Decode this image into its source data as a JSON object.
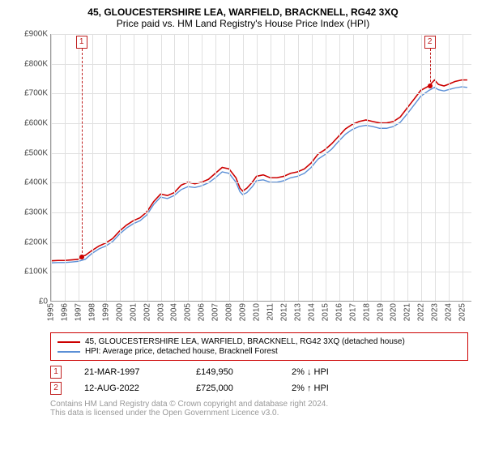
{
  "title_line1": "45, GLOUCESTERSHIRE LEA, WARFIELD, BRACKNELL, RG42 3XQ",
  "title_line2": "Price paid vs. HM Land Registry's House Price Index (HPI)",
  "chart": {
    "type": "line",
    "background_color": "#ffffff",
    "grid_color": "#e0e0e0",
    "axis_color": "#999999",
    "label_fontsize": 10,
    "title_fontsize": 12,
    "ylim": [
      0,
      900000
    ],
    "ytick_step": 100000,
    "ytick_labels": [
      "£0",
      "£100K",
      "£200K",
      "£300K",
      "£400K",
      "£500K",
      "£600K",
      "£700K",
      "£800K",
      "£900K"
    ],
    "x_years": [
      1995,
      1996,
      1997,
      1998,
      1999,
      2000,
      2001,
      2002,
      2003,
      2004,
      2005,
      2006,
      2007,
      2008,
      2009,
      2010,
      2011,
      2012,
      2013,
      2014,
      2015,
      2016,
      2017,
      2018,
      2019,
      2020,
      2021,
      2022,
      2023,
      2024,
      2025
    ],
    "xlim": [
      1995,
      2025.7
    ],
    "series": [
      {
        "id": "price_paid",
        "label": "45, GLOUCESTERSHIRE LEA, WARFIELD, BRACKNELL, RG42 3XQ (detached house)",
        "color": "#cc0000",
        "line_width": 1.6,
        "points": [
          [
            1995.0,
            135000
          ],
          [
            1995.5,
            136000
          ],
          [
            1996.0,
            136000
          ],
          [
            1996.5,
            138000
          ],
          [
            1997.0,
            140000
          ],
          [
            1997.22,
            149950
          ],
          [
            1997.5,
            153000
          ],
          [
            1998.0,
            170000
          ],
          [
            1998.5,
            185000
          ],
          [
            1999.0,
            195000
          ],
          [
            1999.5,
            210000
          ],
          [
            2000.0,
            235000
          ],
          [
            2000.5,
            255000
          ],
          [
            2001.0,
            270000
          ],
          [
            2001.5,
            280000
          ],
          [
            2002.0,
            300000
          ],
          [
            2002.5,
            335000
          ],
          [
            2003.0,
            360000
          ],
          [
            2003.5,
            355000
          ],
          [
            2004.0,
            365000
          ],
          [
            2004.5,
            390000
          ],
          [
            2005.0,
            400000
          ],
          [
            2005.5,
            395000
          ],
          [
            2006.0,
            400000
          ],
          [
            2006.5,
            410000
          ],
          [
            2007.0,
            430000
          ],
          [
            2007.5,
            450000
          ],
          [
            2008.0,
            445000
          ],
          [
            2008.5,
            415000
          ],
          [
            2008.8,
            380000
          ],
          [
            2009.0,
            370000
          ],
          [
            2009.3,
            380000
          ],
          [
            2009.7,
            400000
          ],
          [
            2010.0,
            420000
          ],
          [
            2010.5,
            425000
          ],
          [
            2011.0,
            415000
          ],
          [
            2011.5,
            415000
          ],
          [
            2012.0,
            420000
          ],
          [
            2012.5,
            430000
          ],
          [
            2013.0,
            435000
          ],
          [
            2013.5,
            445000
          ],
          [
            2014.0,
            465000
          ],
          [
            2014.5,
            495000
          ],
          [
            2015.0,
            510000
          ],
          [
            2015.5,
            530000
          ],
          [
            2016.0,
            555000
          ],
          [
            2016.5,
            580000
          ],
          [
            2017.0,
            595000
          ],
          [
            2017.5,
            605000
          ],
          [
            2018.0,
            610000
          ],
          [
            2018.5,
            605000
          ],
          [
            2019.0,
            600000
          ],
          [
            2019.5,
            600000
          ],
          [
            2020.0,
            605000
          ],
          [
            2020.5,
            620000
          ],
          [
            2021.0,
            650000
          ],
          [
            2021.5,
            680000
          ],
          [
            2022.0,
            710000
          ],
          [
            2022.6,
            725000
          ],
          [
            2023.0,
            745000
          ],
          [
            2023.3,
            730000
          ],
          [
            2023.7,
            725000
          ],
          [
            2024.0,
            730000
          ],
          [
            2024.5,
            740000
          ],
          [
            2025.0,
            745000
          ],
          [
            2025.4,
            745000
          ]
        ]
      },
      {
        "id": "hpi",
        "label": "HPI: Average price, detached house, Bracknell Forest",
        "color": "#5b8fd6",
        "line_width": 1.4,
        "points": [
          [
            1995.0,
            128000
          ],
          [
            1995.5,
            129000
          ],
          [
            1996.0,
            129000
          ],
          [
            1996.5,
            131000
          ],
          [
            1997.0,
            133000
          ],
          [
            1997.5,
            140000
          ],
          [
            1998.0,
            160000
          ],
          [
            1998.5,
            175000
          ],
          [
            1999.0,
            185000
          ],
          [
            1999.5,
            200000
          ],
          [
            2000.0,
            225000
          ],
          [
            2000.5,
            245000
          ],
          [
            2001.0,
            260000
          ],
          [
            2001.5,
            270000
          ],
          [
            2002.0,
            290000
          ],
          [
            2002.5,
            325000
          ],
          [
            2003.0,
            350000
          ],
          [
            2003.5,
            345000
          ],
          [
            2004.0,
            355000
          ],
          [
            2004.5,
            375000
          ],
          [
            2005.0,
            385000
          ],
          [
            2005.5,
            382000
          ],
          [
            2006.0,
            388000
          ],
          [
            2006.5,
            398000
          ],
          [
            2007.0,
            415000
          ],
          [
            2007.5,
            435000
          ],
          [
            2008.0,
            430000
          ],
          [
            2008.5,
            400000
          ],
          [
            2008.8,
            368000
          ],
          [
            2009.0,
            358000
          ],
          [
            2009.3,
            365000
          ],
          [
            2009.7,
            385000
          ],
          [
            2010.0,
            405000
          ],
          [
            2010.5,
            408000
          ],
          [
            2011.0,
            400000
          ],
          [
            2011.5,
            400000
          ],
          [
            2012.0,
            405000
          ],
          [
            2012.5,
            415000
          ],
          [
            2013.0,
            420000
          ],
          [
            2013.5,
            430000
          ],
          [
            2014.0,
            450000
          ],
          [
            2014.5,
            478000
          ],
          [
            2015.0,
            493000
          ],
          [
            2015.5,
            512000
          ],
          [
            2016.0,
            538000
          ],
          [
            2016.5,
            562000
          ],
          [
            2017.0,
            578000
          ],
          [
            2017.5,
            588000
          ],
          [
            2018.0,
            592000
          ],
          [
            2018.5,
            588000
          ],
          [
            2019.0,
            582000
          ],
          [
            2019.5,
            582000
          ],
          [
            2020.0,
            588000
          ],
          [
            2020.5,
            602000
          ],
          [
            2021.0,
            630000
          ],
          [
            2021.5,
            660000
          ],
          [
            2022.0,
            690000
          ],
          [
            2022.6,
            710000
          ],
          [
            2023.0,
            720000
          ],
          [
            2023.3,
            712000
          ],
          [
            2023.7,
            708000
          ],
          [
            2024.0,
            712000
          ],
          [
            2024.5,
            718000
          ],
          [
            2025.0,
            722000
          ],
          [
            2025.4,
            720000
          ]
        ]
      }
    ],
    "sale_markers": [
      {
        "n": 1,
        "x": 1997.22,
        "y": 149950,
        "dot_color": "#cc0000"
      },
      {
        "n": 2,
        "x": 2022.61,
        "y": 725000,
        "dot_color": "#cc0000"
      }
    ],
    "marker_line_color": "#c02020"
  },
  "legend": {
    "border_color": "#cc0000",
    "items": [
      {
        "color": "#cc0000",
        "label": "45, GLOUCESTERSHIRE LEA, WARFIELD, BRACKNELL, RG42 3XQ (detached house)"
      },
      {
        "color": "#5b8fd6",
        "label": "HPI: Average price, detached house, Bracknell Forest"
      }
    ]
  },
  "transactions": [
    {
      "n": "1",
      "date": "21-MAR-1997",
      "price": "£149,950",
      "delta": "2% ↓ HPI"
    },
    {
      "n": "2",
      "date": "12-AUG-2022",
      "price": "£725,000",
      "delta": "2% ↑ HPI"
    }
  ],
  "attribution_line1": "Contains HM Land Registry data © Crown copyright and database right 2024.",
  "attribution_line2": "This data is licensed under the Open Government Licence v3.0."
}
